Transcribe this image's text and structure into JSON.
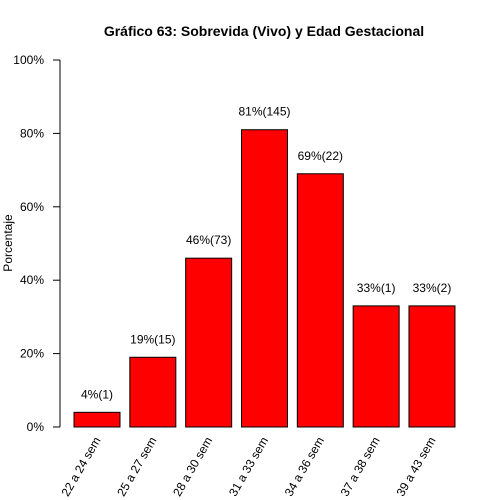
{
  "chart_data": {
    "type": "bar",
    "title": "Gráfico 63: Sobrevida (Vivo) y Edad Gestacional",
    "xlabel": "",
    "ylabel": "Porcentaje",
    "ylim": [
      0,
      100
    ],
    "yticks": [
      "0%",
      "20%",
      "40%",
      "60%",
      "80%",
      "100%"
    ],
    "ytick_values": [
      0,
      20,
      40,
      60,
      80,
      100
    ],
    "categories": [
      "22 a 24 sem",
      "25 a 27 sem",
      "28 a 30 sem",
      "31 a 33 sem",
      "34 a 36 sem",
      "37 a 38 sem",
      "39 a 43 sem"
    ],
    "values": [
      4,
      19,
      46,
      81,
      69,
      33,
      33
    ],
    "data_labels": [
      "4%(1)",
      "19%(15)",
      "46%(73)",
      "81%(145)",
      "69%(22)",
      "33%(1)",
      "33%(2)"
    ],
    "bar_color": "#ff0000",
    "grid": false,
    "legend": "none"
  }
}
